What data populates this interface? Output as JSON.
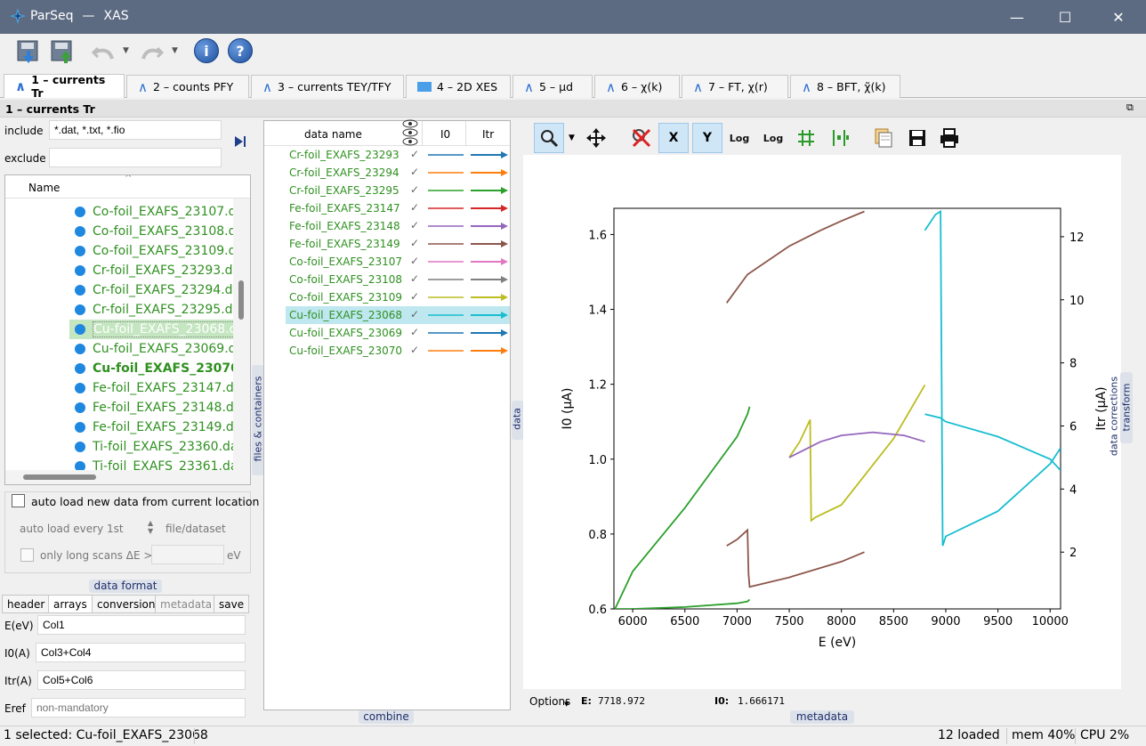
{
  "window": {
    "app": "ParSeq",
    "separator": "—",
    "title": "XAS",
    "minimize": "—",
    "maximize": "☐",
    "close": "✕"
  },
  "toolbar": {
    "info_label": "i",
    "help_label": "?"
  },
  "tabs": [
    {
      "label": "1 – currents Tr",
      "active": true
    },
    {
      "label": "2 – counts PFY"
    },
    {
      "label": "3 – currents TEY/TFY"
    },
    {
      "label": "4 – 2D XES"
    },
    {
      "label": "5 – μd"
    },
    {
      "label": "6 – χ(k)"
    },
    {
      "label": "7 – FT, χ(r)"
    },
    {
      "label": "8 – BFT, χ̃(k)"
    }
  ],
  "section_title": "1 – currents Tr",
  "filters": {
    "include_label": "include",
    "include_value": "*.dat, *.txt, *.fio",
    "exclude_label": "exclude",
    "exclude_value": ""
  },
  "file_tree": {
    "header": "Name",
    "items": [
      {
        "label": "Co-foil_EXAFS_23107.d"
      },
      {
        "label": "Co-foil_EXAFS_23108.d"
      },
      {
        "label": "Co-foil_EXAFS_23109.d"
      },
      {
        "label": "Cr-foil_EXAFS_23293.da"
      },
      {
        "label": "Cr-foil_EXAFS_23294.da"
      },
      {
        "label": "Cr-foil_EXAFS_23295.da"
      },
      {
        "label": "Cu-foil_EXAFS_23068.d",
        "selected": true
      },
      {
        "label": "Cu-foil_EXAFS_23069.da"
      },
      {
        "label": "Cu-foil_EXAFS_23070.",
        "bold": true
      },
      {
        "label": "Fe-foil_EXAFS_23147.da"
      },
      {
        "label": "Fe-foil_EXAFS_23148.da"
      },
      {
        "label": "Fe-foil_EXAFS_23149.da"
      },
      {
        "label": "Ti-foil_EXAFS_23360.da"
      },
      {
        "label": "Ti-foil_EXAFS_23361.da"
      }
    ]
  },
  "side_tabs": {
    "files": "files & containers",
    "data": "data",
    "transform": "transform",
    "corrections": "data corrections"
  },
  "autoload": {
    "checkbox_label": "auto load new data from current location",
    "every_label": "auto load every",
    "every_value": "1st",
    "unit_label": "file/dataset",
    "long_label": "only long scans ΔE >",
    "long_unit": "eV"
  },
  "data_format": {
    "title": "data format",
    "subtabs": [
      "header",
      "arrays",
      "conversion",
      "metadata",
      "save"
    ],
    "active_subtab": "arrays",
    "fields": [
      {
        "label": "E(eV)",
        "value": "Col1",
        "placeholder": ""
      },
      {
        "label": "I0(A)",
        "value": "Col3+Col4",
        "placeholder": ""
      },
      {
        "label": "Itr(A)",
        "value": "Col5+Col6",
        "placeholder": ""
      },
      {
        "label": "Eref",
        "value": "",
        "placeholder": "non-mandatory"
      }
    ]
  },
  "data_list": {
    "header_name": "data name",
    "header_i0": "I0",
    "header_itr": "Itr",
    "combine_label": "combine",
    "rows": [
      {
        "name": "Cr-foil_EXAFS_23293",
        "color": "#1f77b4"
      },
      {
        "name": "Cr-foil_EXAFS_23294",
        "color": "#ff7f0e"
      },
      {
        "name": "Cr-foil_EXAFS_23295",
        "color": "#2ca02c"
      },
      {
        "name": "Fe-foil_EXAFS_23147",
        "color": "#d62728"
      },
      {
        "name": "Fe-foil_EXAFS_23148",
        "color": "#9467bd"
      },
      {
        "name": "Fe-foil_EXAFS_23149",
        "color": "#8c564b"
      },
      {
        "name": "Co-foil_EXAFS_23107",
        "color": "#e377c2"
      },
      {
        "name": "Co-foil_EXAFS_23108",
        "color": "#7f7f7f"
      },
      {
        "name": "Co-foil_EXAFS_23109",
        "color": "#bcbd22"
      },
      {
        "name": "Cu-foil_EXAFS_23068",
        "color": "#17becf",
        "selected": true
      },
      {
        "name": "Cu-foil_EXAFS_23069",
        "color": "#1f77b4"
      },
      {
        "name": "Cu-foil_EXAFS_23070",
        "color": "#ff7f0e"
      }
    ]
  },
  "plot_toolbar": {
    "x_label": "X",
    "y_label": "Y",
    "log_label": "Log"
  },
  "chart_data": {
    "type": "line",
    "xlabel": "E (eV)",
    "ylabel": "I0 (μA)",
    "y2label": "Itr (μA)",
    "xlim": [
      5820,
      10100
    ],
    "ylim": [
      0.6,
      1.67
    ],
    "y2lim": [
      0.2,
      12.9
    ],
    "xticks": [
      6000,
      6500,
      7000,
      7500,
      8000,
      8500,
      9000,
      9500,
      10000
    ],
    "yticks": [
      0.6,
      0.8,
      1.0,
      1.2,
      1.4,
      1.6
    ],
    "y2ticks": [
      2,
      4,
      6,
      8,
      10,
      12
    ],
    "series": [
      {
        "color": "#2ca02c",
        "axis": "y",
        "x": [
          5830,
          6000,
          6500,
          7000,
          7100,
          7120
        ],
        "values": [
          0.6,
          0.7,
          0.87,
          1.06,
          1.12,
          1.14
        ]
      },
      {
        "color": "#2ca02c",
        "axis": "y",
        "x": [
          5830,
          6000,
          6500,
          7000,
          7100,
          7120
        ],
        "values": [
          0.6,
          0.6,
          0.605,
          0.615,
          0.62,
          0.625
        ]
      },
      {
        "color": "#8c564b",
        "axis": "y2",
        "x": [
          6900,
          7000,
          7100,
          7110,
          7120,
          7500,
          8000,
          8220
        ],
        "values": [
          2.2,
          2.4,
          2.7,
          1.3,
          0.9,
          1.2,
          1.7,
          2.0
        ]
      },
      {
        "color": "#8c564b",
        "axis": "y2",
        "x": [
          6900,
          7100,
          7500,
          7800,
          8000,
          8220
        ],
        "values": [
          9.9,
          10.8,
          11.7,
          12.2,
          12.5,
          12.8
        ]
      },
      {
        "color": "#bcbd22",
        "axis": "y2",
        "x": [
          7500,
          7600,
          7700,
          7710,
          7750,
          8000,
          8500,
          8800
        ],
        "values": [
          5.0,
          5.5,
          6.2,
          3.0,
          3.1,
          3.5,
          5.6,
          7.3
        ]
      },
      {
        "color": "#9467bd",
        "axis": "y2",
        "x": [
          7500,
          7800,
          8000,
          8300,
          8600,
          8800
        ],
        "values": [
          5.0,
          5.5,
          5.7,
          5.8,
          5.7,
          5.5
        ]
      },
      {
        "color": "#17becf",
        "axis": "y2",
        "x": [
          8800,
          8900,
          8950,
          8970,
          9000,
          9500,
          10000,
          10100
        ],
        "values": [
          12.2,
          12.7,
          12.8,
          2.2,
          2.5,
          3.3,
          4.8,
          5.3
        ]
      },
      {
        "color": "#17becf",
        "axis": "y",
        "x": [
          8800,
          8950,
          9000,
          9500,
          10000,
          10100
        ],
        "values": [
          1.12,
          1.11,
          1.1,
          1.06,
          1.0,
          0.97
        ]
      }
    ]
  },
  "plot_status": {
    "options_label": "Options",
    "e_label": "E:",
    "e_value": "7718.972",
    "i0_label": "I0:",
    "i0_value": "1.666171",
    "metadata_label": "metadata"
  },
  "status": {
    "selected": "1 selected: Cu-foil_EXAFS_23068",
    "loaded": "12 loaded",
    "mem": "mem 40%",
    "cpu": "CPU 2%"
  }
}
